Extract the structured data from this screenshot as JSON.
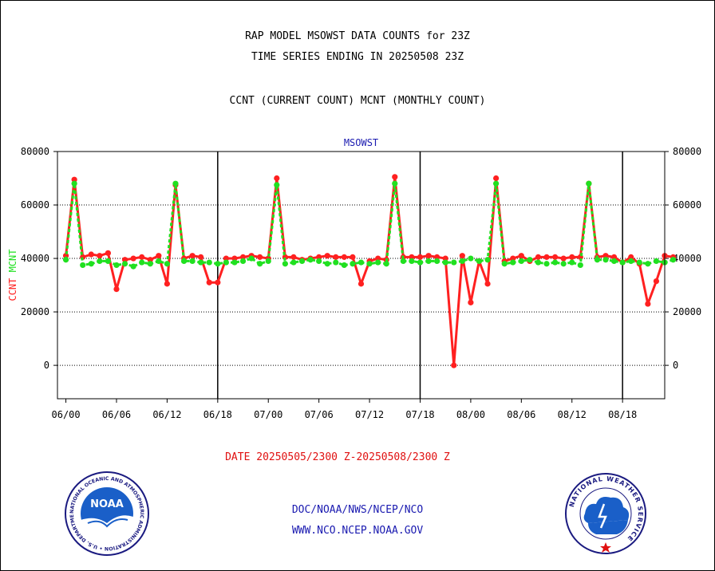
{
  "header": {
    "line1": "RAP MODEL MSOWST DATA COUNTS for 23Z",
    "line2": "TIME SERIES ENDING IN 20250508 23Z",
    "line3": "CCNT (CURRENT COUNT) MCNT (MONTHLY COUNT)"
  },
  "date_range": "DATE 20250505/2300 Z-20250508/2300 Z",
  "footer": {
    "line1": "DOC/NOAA/NWS/NCEP/NCO",
    "line2": "WWW.NCO.NCEP.NOAA.GOV"
  },
  "logos": {
    "noaa_text": "NOAA",
    "noaa_ring": "NATIONAL OCEANIC AND ATMOSPHERIC ADMINISTRATION • U.S. DEPARTMENT OF COMMERCE •",
    "nws_ring": "NATIONAL WEATHER SERVICE"
  },
  "colors": {
    "ccnt": "#ff2020",
    "mcnt": "#20e020",
    "title": "#1a1ab0",
    "grid": "#000000"
  },
  "chart_data": {
    "type": "line",
    "title": "MSOWST",
    "ylabel_left": [
      "CCNT",
      "MCNT"
    ],
    "ylim": [
      -12500,
      80000
    ],
    "yticks": [
      0,
      20000,
      40000,
      60000,
      80000
    ],
    "ytick_labels": [
      "0",
      "20000",
      "40000",
      "60000",
      "80000"
    ],
    "xlim": [
      -1,
      71
    ],
    "xticks": [
      0,
      6,
      12,
      18,
      24,
      30,
      36,
      42,
      48,
      54,
      60,
      66
    ],
    "xtick_labels": [
      "06/00",
      "06/06",
      "06/12",
      "06/18",
      "07/00",
      "07/06",
      "07/12",
      "07/18",
      "08/00",
      "08/06",
      "08/12",
      "08/18"
    ],
    "day_boundaries": [
      18,
      42,
      66
    ],
    "grid": true,
    "series": [
      {
        "name": "CCNT",
        "color": "#ff2020",
        "values": [
          41000,
          69500,
          40500,
          41500,
          41000,
          42000,
          28500,
          39500,
          40000,
          40500,
          39500,
          41000,
          30500,
          67500,
          40000,
          41000,
          40500,
          31000,
          31000,
          40000,
          40000,
          40500,
          41000,
          40500,
          40000,
          70000,
          40500,
          40500,
          39500,
          40000,
          40500,
          41000,
          40500,
          40500,
          40500,
          30500,
          39000,
          40000,
          39500,
          70500,
          40500,
          40500,
          40500,
          41000,
          40500,
          40000,
          0,
          41000,
          23500,
          39000,
          30500,
          70000,
          39000,
          40000,
          41000,
          39000,
          40500,
          40500,
          40500,
          40000,
          40500,
          40500,
          68000,
          40500,
          41000,
          40500,
          38500,
          40500,
          38000,
          23000,
          31500,
          41000,
          40500
        ]
      },
      {
        "name": "MCNT",
        "color": "#20e020",
        "values": [
          39500,
          68000,
          37500,
          38000,
          39000,
          39000,
          37500,
          38000,
          37000,
          38500,
          38000,
          39000,
          38000,
          68000,
          39000,
          39000,
          38500,
          38500,
          38000,
          38500,
          38500,
          39000,
          40000,
          38000,
          39000,
          67500,
          38000,
          38500,
          39000,
          39500,
          39000,
          38000,
          38500,
          37500,
          38000,
          38500,
          38000,
          38500,
          38000,
          68000,
          39000,
          39000,
          38500,
          39000,
          39000,
          38500,
          38500,
          39000,
          40000,
          39000,
          39500,
          68000,
          38000,
          38500,
          39000,
          39500,
          38500,
          38000,
          38500,
          38000,
          38500,
          37500,
          68000,
          39500,
          39500,
          39000,
          38500,
          39000,
          38500,
          38000,
          39000,
          38500,
          39500
        ]
      }
    ]
  }
}
